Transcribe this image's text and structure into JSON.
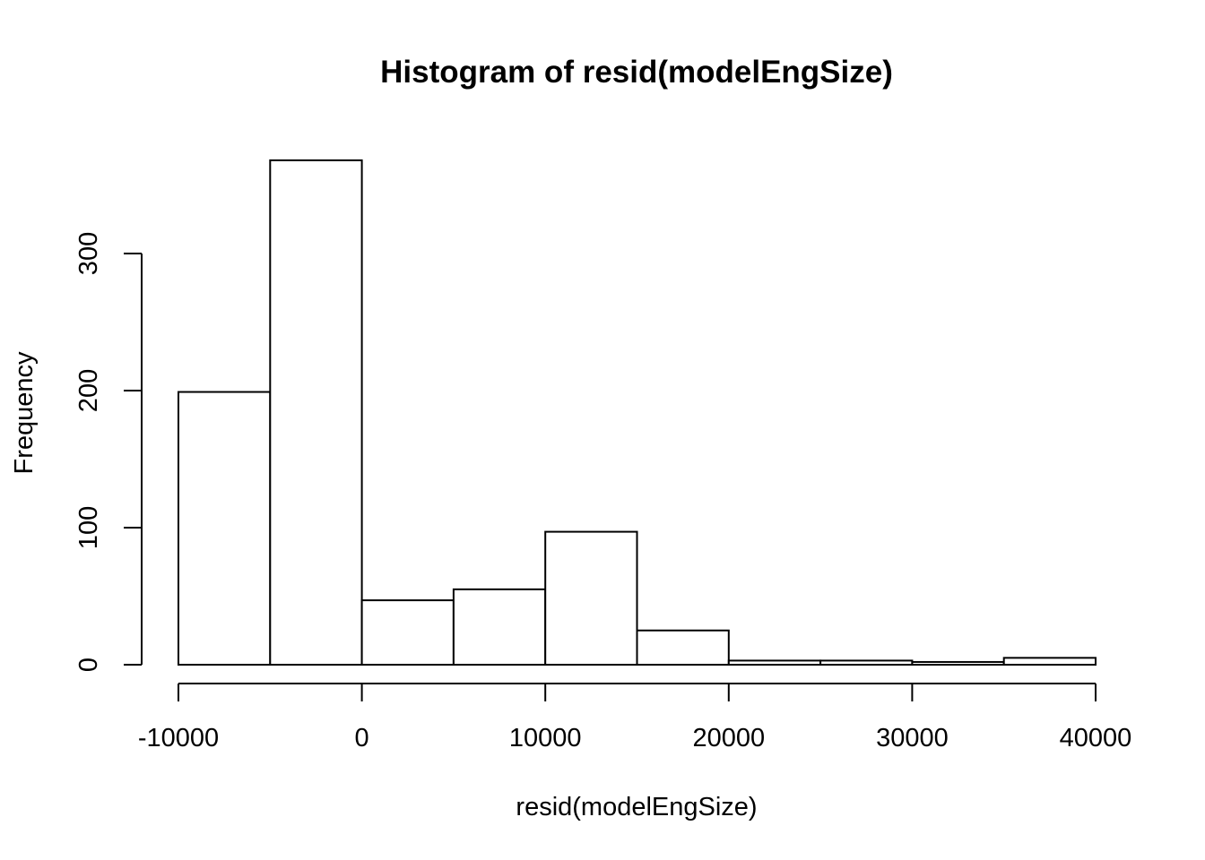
{
  "chart_data": {
    "type": "bar",
    "title": "Histogram of resid(modelEngSize)",
    "xlabel": "resid(modelEngSize)",
    "ylabel": "Frequency",
    "bin_edges": [
      -10000,
      -5000,
      0,
      5000,
      10000,
      15000,
      20000,
      25000,
      30000,
      35000,
      40000
    ],
    "values": [
      199,
      368,
      47,
      55,
      97,
      25,
      3,
      3,
      2,
      5
    ],
    "xlim": [
      -10000,
      40000
    ],
    "ylim": [
      0,
      368
    ],
    "x_ticks": [
      -10000,
      0,
      10000,
      20000,
      30000,
      40000
    ],
    "x_tick_labels": [
      "-10000",
      "0",
      "10000",
      "20000",
      "30000",
      "40000"
    ],
    "y_ticks": [
      0,
      100,
      200,
      300
    ],
    "y_tick_labels": [
      "0",
      "100",
      "200",
      "300"
    ],
    "grid": false,
    "legend": "none",
    "colors": {
      "bar_fill": "#ffffff",
      "bar_stroke": "#000000"
    }
  }
}
